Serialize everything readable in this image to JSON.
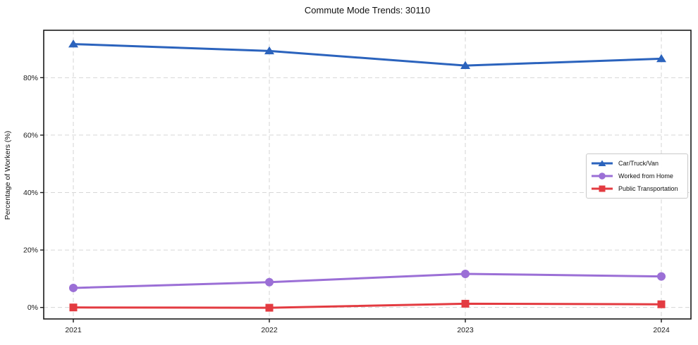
{
  "title": "Commute Mode Trends: 30110",
  "colors": {
    "background": "#ffffff",
    "spine": "#1a1a1a",
    "grid": "#d6d6d6",
    "tick_label": "#1a1a1a",
    "car_truck_van": "#2b63bd",
    "worked_from_home": "#9b6fd6",
    "public_transportation": "#e33b41"
  },
  "chart_data": {
    "type": "line",
    "title": "Commute Mode Trends: 30110",
    "xlabel": "",
    "ylabel": "Percentage of Workers (%)",
    "categories": [
      "2021",
      "2022",
      "2023",
      "2024"
    ],
    "x": [
      2021,
      2022,
      2023,
      2024
    ],
    "y_ticks": [
      0,
      20,
      40,
      60,
      80
    ],
    "y_tick_labels": [
      "0%",
      "20%",
      "40%",
      "60%",
      "80%"
    ],
    "ylim": [
      -4,
      96.5
    ],
    "grid": "dashed-both-axes",
    "legend_position": "center-right",
    "series": [
      {
        "name": "Car/Truck/Van",
        "key": "car_truck_van",
        "marker": "triangle",
        "values": [
          91.7,
          89.3,
          84.2,
          86.6
        ]
      },
      {
        "name": "Worked from Home",
        "key": "worked_from_home",
        "marker": "circle",
        "values": [
          6.8,
          8.8,
          11.7,
          10.8
        ]
      },
      {
        "name": "Public Transportation",
        "key": "public_transportation",
        "marker": "square",
        "values": [
          0.0,
          -0.1,
          1.3,
          1.1
        ]
      }
    ]
  }
}
